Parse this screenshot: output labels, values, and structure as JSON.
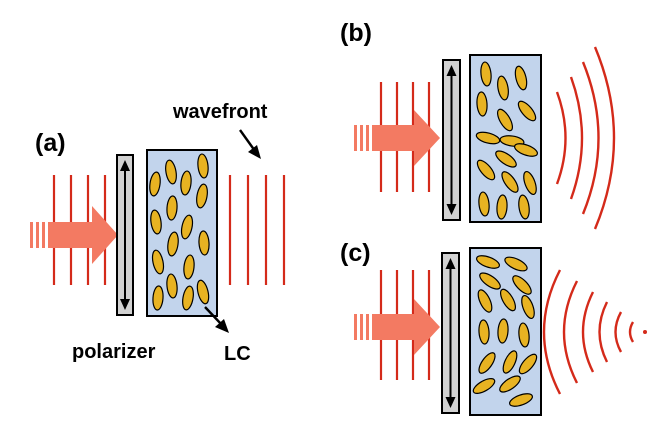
{
  "colors": {
    "wavefront": "#d42a1a",
    "beam_arrow": "#f37a62",
    "lc_cell_fill": "#c2d4ec",
    "lc_molecule_fill": "#e8b322",
    "polarizer_fill": "#d2d2d2",
    "outline": "#000000"
  },
  "panels": {
    "a": {
      "label": "(a)"
    },
    "b": {
      "label": "(b)"
    },
    "c": {
      "label": "(c)"
    }
  },
  "annotations": {
    "wavefront": "wavefront",
    "polarizer": "polarizer",
    "lc": "LC"
  },
  "icons": {
    "beam": "thick-arrow-icon",
    "polarizer_axis": "double-headed-arrow-icon",
    "pointer": "arrow-icon"
  }
}
